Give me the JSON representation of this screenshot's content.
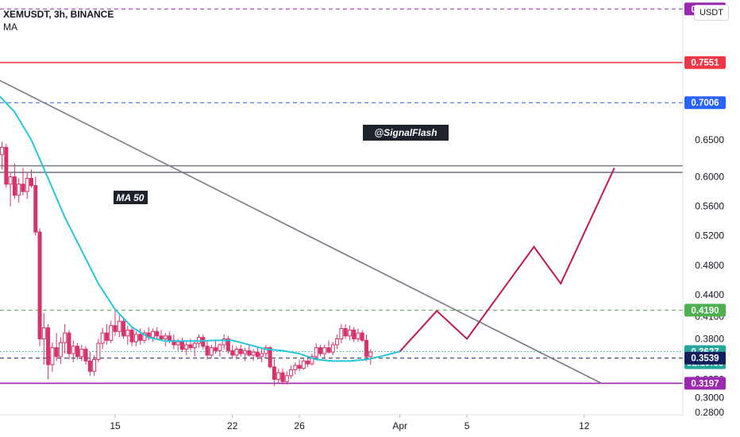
{
  "header": {
    "symbol_line": "XEMUSDT, 3h, BINANCE",
    "indicator_label": "MA"
  },
  "currency_button": "USDT",
  "annotations": {
    "watermark": "@SignalFlash",
    "ma_label": "MA 50"
  },
  "colors": {
    "candle_up": "#ffffff",
    "candle_down": "#d6336c",
    "ma_line": "#26c6da",
    "trend_line": "#787b86",
    "red_level": "#f23645",
    "blue_level": "#2962ff",
    "purple_level": "#9c27b0",
    "green_level": "#4caf50",
    "projection": "#c2185b",
    "teal_dotted": "#26a69a"
  },
  "chart_data": {
    "type": "candlestick",
    "title": "XEMUSDT, 3h, BINANCE",
    "ylabel": "USDT",
    "y_axis": {
      "range": [
        0.277,
        0.84
      ],
      "ticks": [
        "0.6500",
        "0.6000",
        "0.5600",
        "0.5200",
        "0.4800",
        "0.4400",
        "0.4100",
        "0.3800",
        "0.3250",
        "0.3000",
        "0.2800"
      ],
      "tick_values": [
        0.65,
        0.6,
        0.56,
        0.52,
        0.48,
        0.44,
        0.41,
        0.38,
        0.325,
        0.3,
        0.28
      ],
      "top_partial": "0.8"
    },
    "x_axis": {
      "ticks": [
        "15",
        "22",
        "26",
        "Apr",
        "5",
        "12"
      ],
      "tick_days": [
        15,
        22,
        26,
        32,
        36,
        43
      ]
    },
    "horizontal_levels": [
      {
        "value": 0.8278,
        "label": "0.8278",
        "color": "#9c27b0",
        "style": "dashed"
      },
      {
        "value": 0.7551,
        "label": "0.7551",
        "color": "#f23645",
        "style": "solid"
      },
      {
        "value": 0.7006,
        "label": "0.7006",
        "color": "#2962ff",
        "style": "dashed"
      },
      {
        "value": 0.615,
        "label": "",
        "color": "#787b86",
        "style": "solid"
      },
      {
        "value": 0.606,
        "label": "",
        "color": "#787b86",
        "style": "solid"
      },
      {
        "value": 0.419,
        "label": "0.4190",
        "color": "#4caf50",
        "style": "dashed"
      },
      {
        "value": 0.3627,
        "label": "0.3627",
        "color": "#26a69a",
        "style": "dotted",
        "sublabel": "02:10:33"
      },
      {
        "value": 0.3539,
        "label": "0.3539",
        "color": "#131e5a",
        "style": "dashed"
      },
      {
        "value": 0.3197,
        "label": "0.3197",
        "color": "#9c27b0",
        "style": "solid"
      }
    ],
    "trendline": [
      [
        6.0,
        0.755
      ],
      [
        44.0,
        0.32
      ]
    ],
    "projection_path": [
      [
        32.0,
        0.363
      ],
      [
        34.2,
        0.418
      ],
      [
        36.0,
        0.38
      ],
      [
        40.0,
        0.505
      ],
      [
        41.6,
        0.455
      ],
      [
        44.8,
        0.612
      ]
    ],
    "ma50": [
      [
        6.0,
        0.728
      ],
      [
        7.0,
        0.728
      ],
      [
        8.0,
        0.712
      ],
      [
        9.0,
        0.688
      ],
      [
        10.0,
        0.65
      ],
      [
        11.0,
        0.598
      ],
      [
        12.0,
        0.545
      ],
      [
        13.0,
        0.5
      ],
      [
        14.0,
        0.455
      ],
      [
        15.0,
        0.42
      ],
      [
        16.0,
        0.396
      ],
      [
        17.0,
        0.382
      ],
      [
        18.0,
        0.377
      ],
      [
        19.0,
        0.377
      ],
      [
        20.0,
        0.377
      ],
      [
        21.0,
        0.378
      ],
      [
        22.0,
        0.378
      ],
      [
        23.0,
        0.372
      ],
      [
        24.0,
        0.366
      ],
      [
        25.0,
        0.364
      ],
      [
        26.0,
        0.36
      ],
      [
        27.0,
        0.352
      ],
      [
        28.0,
        0.35
      ],
      [
        29.0,
        0.35
      ],
      [
        30.0,
        0.352
      ],
      [
        31.0,
        0.357
      ],
      [
        32.0,
        0.363
      ]
    ],
    "candles": [
      [
        6.0,
        0.72,
        0.735,
        0.712,
        0.728
      ],
      [
        6.25,
        0.728,
        0.732,
        0.705,
        0.71
      ],
      [
        6.5,
        0.71,
        0.728,
        0.708,
        0.722
      ],
      [
        6.75,
        0.722,
        0.738,
        0.715,
        0.715
      ],
      [
        7.0,
        0.715,
        0.73,
        0.708,
        0.725
      ],
      [
        7.25,
        0.725,
        0.728,
        0.7,
        0.705
      ],
      [
        7.5,
        0.705,
        0.718,
        0.69,
        0.712
      ],
      [
        7.75,
        0.712,
        0.715,
        0.66,
        0.665
      ],
      [
        8.0,
        0.665,
        0.672,
        0.62,
        0.63
      ],
      [
        8.25,
        0.63,
        0.648,
        0.61,
        0.64
      ],
      [
        8.5,
        0.64,
        0.645,
        0.585,
        0.59
      ],
      [
        8.75,
        0.59,
        0.605,
        0.56,
        0.6
      ],
      [
        9.0,
        0.6,
        0.618,
        0.57,
        0.575
      ],
      [
        9.25,
        0.575,
        0.598,
        0.565,
        0.59
      ],
      [
        9.5,
        0.59,
        0.612,
        0.575,
        0.58
      ],
      [
        9.75,
        0.58,
        0.605,
        0.57,
        0.598
      ],
      [
        10.0,
        0.598,
        0.61,
        0.585,
        0.588
      ],
      [
        10.25,
        0.588,
        0.6,
        0.52,
        0.525
      ],
      [
        10.5,
        0.525,
        0.53,
        0.37,
        0.38
      ],
      [
        10.75,
        0.38,
        0.415,
        0.345,
        0.395
      ],
      [
        11.0,
        0.395,
        0.4,
        0.325,
        0.345
      ],
      [
        11.25,
        0.345,
        0.375,
        0.335,
        0.368
      ],
      [
        11.5,
        0.368,
        0.388,
        0.35,
        0.356
      ],
      [
        11.75,
        0.356,
        0.382,
        0.346,
        0.375
      ],
      [
        12.0,
        0.375,
        0.4,
        0.36,
        0.388
      ],
      [
        12.25,
        0.388,
        0.392,
        0.352,
        0.36
      ],
      [
        12.5,
        0.36,
        0.378,
        0.348,
        0.37
      ],
      [
        12.75,
        0.37,
        0.374,
        0.352,
        0.356
      ],
      [
        13.0,
        0.356,
        0.372,
        0.35,
        0.366
      ],
      [
        13.25,
        0.366,
        0.37,
        0.345,
        0.35
      ],
      [
        13.5,
        0.35,
        0.362,
        0.33,
        0.336
      ],
      [
        13.75,
        0.336,
        0.358,
        0.33,
        0.352
      ],
      [
        14.0,
        0.352,
        0.38,
        0.348,
        0.374
      ],
      [
        14.25,
        0.374,
        0.395,
        0.366,
        0.388
      ],
      [
        14.5,
        0.388,
        0.4,
        0.372,
        0.378
      ],
      [
        14.75,
        0.378,
        0.405,
        0.374,
        0.398
      ],
      [
        15.0,
        0.398,
        0.418,
        0.384,
        0.39
      ],
      [
        15.25,
        0.39,
        0.412,
        0.382,
        0.404
      ],
      [
        15.5,
        0.404,
        0.41,
        0.38,
        0.384
      ],
      [
        15.75,
        0.384,
        0.398,
        0.372,
        0.392
      ],
      [
        16.0,
        0.392,
        0.396,
        0.37,
        0.376
      ],
      [
        16.25,
        0.376,
        0.39,
        0.37,
        0.386
      ],
      [
        16.5,
        0.386,
        0.394,
        0.372,
        0.378
      ],
      [
        16.75,
        0.378,
        0.392,
        0.374,
        0.388
      ],
      [
        17.0,
        0.388,
        0.396,
        0.378,
        0.382
      ],
      [
        17.25,
        0.382,
        0.394,
        0.376,
        0.39
      ],
      [
        17.5,
        0.39,
        0.396,
        0.38,
        0.384
      ],
      [
        17.75,
        0.384,
        0.392,
        0.378,
        0.38
      ],
      [
        18.0,
        0.38,
        0.388,
        0.37,
        0.384
      ],
      [
        18.25,
        0.384,
        0.39,
        0.374,
        0.378
      ],
      [
        18.5,
        0.378,
        0.386,
        0.366,
        0.372
      ],
      [
        18.75,
        0.372,
        0.38,
        0.364,
        0.376
      ],
      [
        19.0,
        0.376,
        0.382,
        0.362,
        0.366
      ],
      [
        19.25,
        0.366,
        0.376,
        0.358,
        0.372
      ],
      [
        19.5,
        0.372,
        0.38,
        0.364,
        0.368
      ],
      [
        19.75,
        0.368,
        0.378,
        0.356,
        0.374
      ],
      [
        20.0,
        0.374,
        0.386,
        0.368,
        0.382
      ],
      [
        20.25,
        0.382,
        0.386,
        0.366,
        0.37
      ],
      [
        20.5,
        0.37,
        0.378,
        0.352,
        0.358
      ],
      [
        20.75,
        0.358,
        0.372,
        0.354,
        0.368
      ],
      [
        21.0,
        0.368,
        0.378,
        0.36,
        0.364
      ],
      [
        21.25,
        0.364,
        0.374,
        0.356,
        0.372
      ],
      [
        21.5,
        0.372,
        0.386,
        0.366,
        0.38
      ],
      [
        21.75,
        0.38,
        0.384,
        0.36,
        0.364
      ],
      [
        22.0,
        0.364,
        0.372,
        0.354,
        0.358
      ],
      [
        22.25,
        0.358,
        0.37,
        0.352,
        0.366
      ],
      [
        22.5,
        0.366,
        0.372,
        0.356,
        0.36
      ],
      [
        22.75,
        0.36,
        0.368,
        0.35,
        0.364
      ],
      [
        23.0,
        0.364,
        0.372,
        0.356,
        0.358
      ],
      [
        23.25,
        0.358,
        0.366,
        0.35,
        0.362
      ],
      [
        23.5,
        0.362,
        0.37,
        0.352,
        0.356
      ],
      [
        23.75,
        0.356,
        0.366,
        0.348,
        0.36
      ],
      [
        24.0,
        0.36,
        0.372,
        0.355,
        0.368
      ],
      [
        24.25,
        0.368,
        0.37,
        0.34,
        0.342
      ],
      [
        24.5,
        0.342,
        0.352,
        0.316,
        0.325
      ],
      [
        24.75,
        0.325,
        0.34,
        0.32,
        0.334
      ],
      [
        25.0,
        0.334,
        0.34,
        0.318,
        0.322
      ],
      [
        25.25,
        0.322,
        0.336,
        0.318,
        0.33
      ],
      [
        25.5,
        0.33,
        0.344,
        0.326,
        0.338
      ],
      [
        25.75,
        0.338,
        0.348,
        0.332,
        0.344
      ],
      [
        26.0,
        0.344,
        0.352,
        0.336,
        0.34
      ],
      [
        26.25,
        0.34,
        0.354,
        0.338,
        0.35
      ],
      [
        26.5,
        0.35,
        0.356,
        0.342,
        0.346
      ],
      [
        26.75,
        0.346,
        0.36,
        0.344,
        0.356
      ],
      [
        27.0,
        0.356,
        0.374,
        0.352,
        0.368
      ],
      [
        27.25,
        0.368,
        0.372,
        0.356,
        0.36
      ],
      [
        27.5,
        0.36,
        0.372,
        0.354,
        0.368
      ],
      [
        27.75,
        0.368,
        0.378,
        0.36,
        0.362
      ],
      [
        28.0,
        0.362,
        0.376,
        0.358,
        0.372
      ],
      [
        28.25,
        0.372,
        0.386,
        0.366,
        0.38
      ],
      [
        28.5,
        0.38,
        0.4,
        0.374,
        0.394
      ],
      [
        28.75,
        0.394,
        0.4,
        0.38,
        0.384
      ],
      [
        29.0,
        0.384,
        0.398,
        0.378,
        0.392
      ],
      [
        29.25,
        0.392,
        0.396,
        0.376,
        0.38
      ],
      [
        29.5,
        0.38,
        0.394,
        0.376,
        0.388
      ],
      [
        29.75,
        0.388,
        0.392,
        0.376,
        0.378
      ],
      [
        30.0,
        0.378,
        0.386,
        0.35,
        0.356
      ],
      [
        30.25,
        0.356,
        0.366,
        0.345,
        0.362
      ]
    ]
  }
}
